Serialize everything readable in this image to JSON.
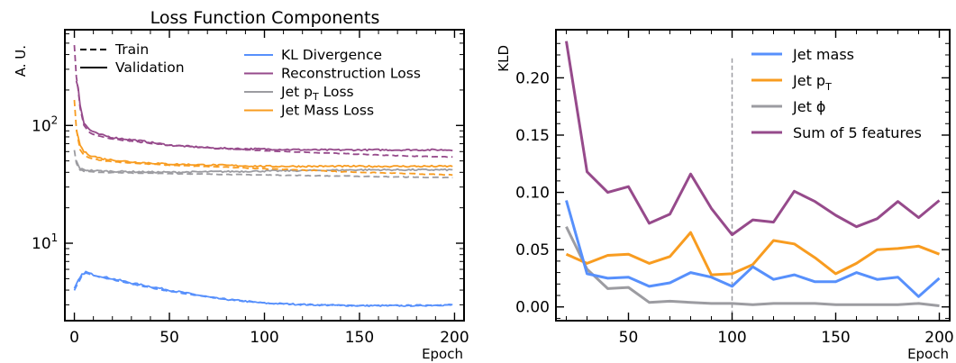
{
  "chart_data": [
    {
      "type": "line",
      "title": "Loss Function Components",
      "xlabel": "Epoch",
      "ylabel": "A. U.",
      "xlim": [
        -5,
        205
      ],
      "ylim": [
        2.2,
        650
      ],
      "yscale": "log",
      "xticks": [
        "0",
        "50",
        "100",
        "150",
        "200"
      ],
      "yticks": [
        {
          "value": 10,
          "label": "10",
          "exp": "1"
        },
        {
          "value": 100,
          "label": "10",
          "exp": "2"
        }
      ],
      "legend_linestyles": [
        {
          "name": "Train",
          "style": "dashed"
        },
        {
          "name": "Validation",
          "style": "solid"
        }
      ],
      "series": [
        {
          "name": "KL Divergence",
          "color": "#5790fc",
          "train": {
            "x": [
              0,
              2,
              4,
              6,
              10,
              20,
              30,
              50,
              75,
              100,
              125,
              150,
              175,
              199
            ],
            "y": [
              4.0,
              4.6,
              5.3,
              5.6,
              5.3,
              4.9,
              4.5,
              3.9,
              3.4,
              3.1,
              3.0,
              2.95,
              2.95,
              3.0
            ]
          },
          "validation": {
            "x": [
              0,
              2,
              4,
              6,
              10,
              20,
              30,
              50,
              75,
              100,
              125,
              150,
              175,
              199
            ],
            "y": [
              4.1,
              4.8,
              5.4,
              5.7,
              5.4,
              5.0,
              4.6,
              4.0,
              3.4,
              3.1,
              3.0,
              2.95,
              2.95,
              3.0
            ]
          }
        },
        {
          "name": "Reconstruction Loss",
          "color": "#964a8b",
          "train": {
            "x": [
              0,
              1,
              2,
              3,
              5,
              8,
              12,
              20,
              35,
              50,
              75,
              100,
              125,
              150,
              175,
              199
            ],
            "y": [
              480,
              260,
              200,
              140,
              100,
              87,
              82,
              77,
              72,
              68,
              64,
              61,
              59,
              57,
              55,
              54
            ]
          },
          "validation": {
            "x": [
              1,
              2,
              3,
              5,
              8,
              12,
              20,
              35,
              50,
              75,
              100,
              125,
              150,
              175,
              199
            ],
            "y": [
              240,
              210,
              150,
              105,
              92,
              85,
              79,
              74,
              68,
              64,
              63,
              62,
              62,
              62,
              62
            ]
          }
        },
        {
          "name": "Jet p_T Loss",
          "color": "#9c9ca1",
          "train": {
            "x": [
              0,
              1,
              2,
              3,
              5,
              8,
              15,
              30,
              50,
              75,
              100,
              125,
              150,
              175,
              199
            ],
            "y": [
              62,
              48,
              44,
              42,
              41,
              40.5,
              40,
              39.5,
              39,
              38.5,
              38,
              37.5,
              37,
              36.5,
              36
            ]
          },
          "validation": {
            "x": [
              1,
              2,
              3,
              5,
              8,
              15,
              30,
              50,
              75,
              100,
              125,
              150,
              175,
              199
            ],
            "y": [
              50,
              46,
              43,
              42,
              41.5,
              41,
              40.5,
              40,
              40.5,
              41,
              41.5,
              42,
              42,
              42
            ]
          }
        },
        {
          "name": "Jet Mass Loss",
          "color": "#f89c20",
          "train": {
            "x": [
              0,
              1,
              2,
              3,
              5,
              8,
              15,
              30,
              50,
              75,
              100,
              125,
              150,
              175,
              199
            ],
            "y": [
              165,
              95,
              75,
              62,
              56,
              53,
              50,
              48,
              46,
              44.5,
              43,
              41.5,
              40,
              39,
              38
            ]
          },
          "validation": {
            "x": [
              1,
              2,
              3,
              5,
              8,
              15,
              30,
              50,
              75,
              100,
              125,
              150,
              175,
              199
            ],
            "y": [
              90,
              80,
              68,
              60,
              56,
              52,
              49,
              47,
              46,
              45,
              45,
              45,
              45,
              45
            ]
          }
        }
      ]
    },
    {
      "type": "line",
      "title": "",
      "xlabel": "Epoch",
      "ylabel": "KLD",
      "xlim": [
        15,
        205
      ],
      "ylim": [
        -0.012,
        0.242
      ],
      "xticks": [
        "50",
        "100",
        "150",
        "200"
      ],
      "yticks": [
        "0.00",
        "0.05",
        "0.10",
        "0.15",
        "0.20"
      ],
      "vline": 100,
      "x": [
        20,
        30,
        40,
        50,
        60,
        70,
        80,
        90,
        100,
        110,
        120,
        130,
        140,
        150,
        160,
        170,
        180,
        190,
        200
      ],
      "series": [
        {
          "name": "Jet mass",
          "color": "#5790fc",
          "values": [
            0.093,
            0.029,
            0.025,
            0.026,
            0.018,
            0.021,
            0.03,
            0.026,
            0.018,
            0.035,
            0.024,
            0.028,
            0.022,
            0.022,
            0.03,
            0.024,
            0.026,
            0.009,
            0.025
          ]
        },
        {
          "name": "Jet p",
          "sub": "T",
          "color": "#f89c20",
          "values": [
            0.046,
            0.038,
            0.045,
            0.046,
            0.038,
            0.044,
            0.065,
            0.028,
            0.029,
            0.037,
            0.058,
            0.055,
            0.043,
            0.029,
            0.038,
            0.05,
            0.051,
            0.053,
            0.046
          ]
        },
        {
          "name": "Jet ϕ",
          "color": "#9c9ca1",
          "values": [
            0.07,
            0.033,
            0.016,
            0.017,
            0.004,
            0.005,
            0.004,
            0.003,
            0.003,
            0.002,
            0.003,
            0.003,
            0.003,
            0.002,
            0.002,
            0.002,
            0.002,
            0.003,
            0.001
          ]
        },
        {
          "name": "Sum of 5 features",
          "color": "#964a8b",
          "values": [
            0.232,
            0.118,
            0.1,
            0.105,
            0.073,
            0.081,
            0.116,
            0.086,
            0.063,
            0.076,
            0.074,
            0.101,
            0.092,
            0.08,
            0.07,
            0.077,
            0.092,
            0.078,
            0.093
          ]
        }
      ]
    }
  ]
}
